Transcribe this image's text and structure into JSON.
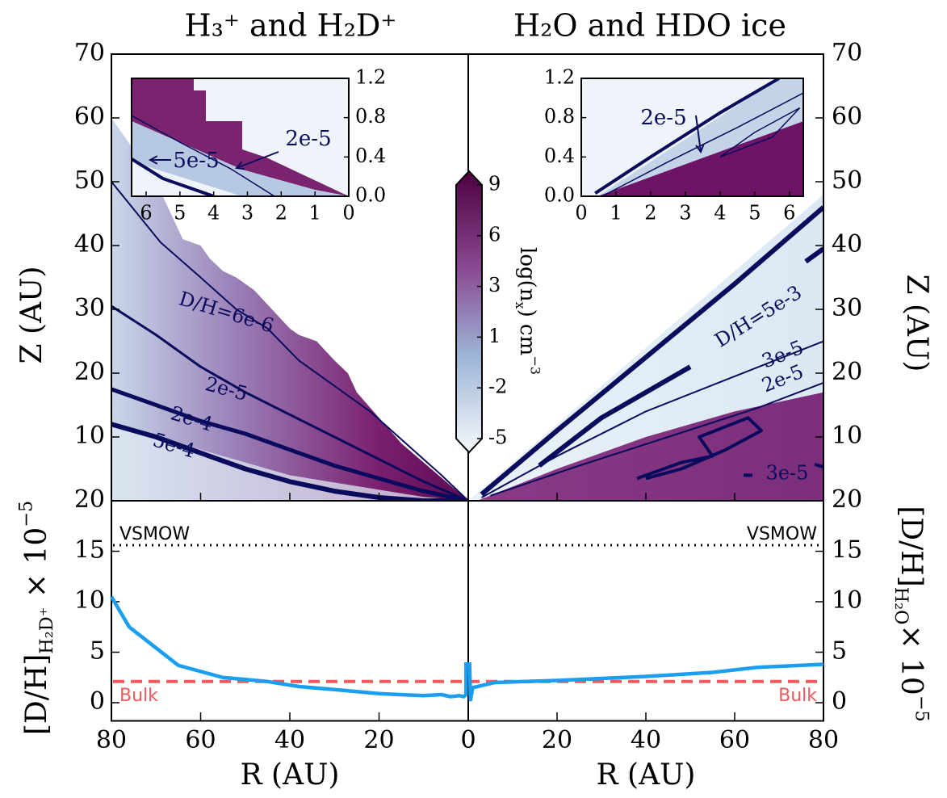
{
  "chart_data": {
    "type": "contour-profile",
    "titles": [
      "H₃⁺ and H₂D⁺",
      "H₂O and HDO ice"
    ],
    "xlabel": "R (AU)",
    "xlim": [
      0,
      80
    ],
    "xticks_left": [
      80,
      60,
      40,
      20,
      0
    ],
    "xticks_right": [
      0,
      20,
      40,
      60,
      80
    ],
    "top": {
      "ylabel": "Z (AU)",
      "ylim": [
        0,
        70
      ],
      "yticks": [
        10,
        20,
        30,
        40,
        50,
        60,
        70
      ],
      "contour_color": "#0b0b5e",
      "contours_left": [
        {
          "label": "D/H=6e-6",
          "linewidth": 2,
          "R": [
            80,
            69,
            60,
            52,
            45,
            38,
            30,
            22,
            14,
            6,
            0
          ],
          "Z": [
            50,
            40.5,
            35,
            30,
            27,
            22,
            18,
            14,
            9,
            4,
            0
          ]
        },
        {
          "label": "2e-5",
          "linewidth": 3,
          "R": [
            80,
            70,
            60,
            50,
            40,
            30,
            20,
            10,
            0
          ],
          "Z": [
            30.5,
            26,
            21,
            17,
            13.5,
            10,
            6.5,
            3,
            0
          ]
        },
        {
          "label": "2e-4",
          "linewidth": 5,
          "R": [
            80,
            70,
            60,
            50,
            40,
            30,
            20,
            10,
            0
          ],
          "Z": [
            17.5,
            15,
            12.5,
            10.5,
            8,
            5.5,
            3.5,
            1.5,
            0
          ]
        },
        {
          "label": "5e-4",
          "linewidth": 6,
          "R": [
            80,
            70,
            60,
            50,
            40,
            30,
            20,
            10,
            0
          ],
          "Z": [
            12,
            10,
            7.5,
            5,
            3,
            1.5,
            0.5,
            0,
            0
          ]
        }
      ],
      "contours_right": [
        {
          "linewidth": 6,
          "R": [
            3,
            20,
            40,
            60,
            80
          ],
          "Z": [
            1,
            11,
            22.5,
            34,
            46
          ]
        },
        {
          "label": "D/H=5e-3",
          "linewidth": 6,
          "R": [
            16,
            30,
            50,
            null,
            76,
            80
          ],
          "Z": [
            5.5,
            13,
            21,
            null,
            37.5,
            39.5
          ]
        },
        {
          "label": "3e-5",
          "linewidth": 2,
          "R": [
            3,
            20,
            40,
            60,
            80
          ],
          "Z": [
            0.5,
            7,
            14,
            19.5,
            25
          ]
        },
        {
          "label": "2e-5",
          "linewidth": 2,
          "R": [
            5,
            25,
            45,
            65,
            80
          ],
          "Z": [
            0.8,
            5.5,
            10,
            14.5,
            18.5
          ]
        },
        {
          "label": "3e-5",
          "linewidth": 4,
          "R": [
            38,
            48,
            55,
            52,
            63,
            66,
            58,
            48,
            40,
            null,
            62,
            64,
            null,
            78,
            80
          ],
          "Z": [
            3.5,
            6,
            7,
            10,
            13,
            11,
            8,
            5,
            3.5,
            null,
            4,
            4,
            null,
            5.7,
            5.3
          ]
        }
      ]
    },
    "colorbar": {
      "label": {
        "main": "log(n",
        "sub": "x",
        "tail": ") cm",
        "sup": "−3"
      },
      "ticks": [
        9,
        6,
        3,
        1,
        -2,
        -5
      ]
    },
    "insets": [
      {
        "xlim": [
          6.43,
          0
        ],
        "ylim": [
          0,
          1.2
        ],
        "xticks": [
          6,
          5,
          4,
          3,
          2,
          1,
          0
        ],
        "yticks": [
          {
            "value": 0,
            "label": "0.0"
          },
          0.4,
          0.8,
          1.2
        ],
        "contours": [
          {
            "label": "2e-5",
            "linewidth": 1.5,
            "R": [
              6.43,
              5,
              3.5,
              2.2
            ],
            "Z": [
              0.82,
              0.55,
              0.28,
              0
            ]
          },
          {
            "label": "5e-5",
            "linewidth": 4,
            "R": [
              6.43,
              5.5,
              4
            ],
            "Z": [
              0.38,
              0.18,
              0
            ]
          }
        ]
      },
      {
        "xlim": [
          0,
          6.4
        ],
        "ylim": [
          0,
          1.2
        ],
        "xticks": [
          0,
          1,
          2,
          3,
          4,
          5,
          6
        ],
        "yticks": [
          {
            "value": 0,
            "label": "0.0"
          },
          0.4,
          0.8,
          1.2
        ],
        "contours": [
          {
            "linewidth": 4,
            "R": [
              0.4,
              2,
              4,
              5.7
            ],
            "Z": [
              0.03,
              0.4,
              0.85,
              1.2
            ]
          },
          {
            "label": "2e-5",
            "linewidth": 1.5,
            "R": [
              0.6,
              2.5,
              4.5,
              6.4
            ],
            "Z": [
              0,
              0.35,
              0.7,
              1.05
            ]
          },
          {
            "linewidth": 1.5,
            "R": [
              4,
              5,
              6.3,
              5.5,
              4
            ],
            "Z": [
              0.4,
              0.65,
              0.9,
              0.6,
              0.4
            ]
          }
        ]
      }
    ],
    "bottom": {
      "ylim": [
        -1.8,
        20
      ],
      "yticks": [
        0,
        5,
        10,
        15,
        20
      ],
      "ylabel_left": {
        "main": "[D/H]",
        "sub": "H₂D⁺",
        "tail": " × 10",
        "sup": "−5"
      },
      "ylabel_right": {
        "main": "[D/H]",
        "sub": "H₂O",
        "tail": "× 10",
        "sup": "−5"
      },
      "series": [
        {
          "side": "left",
          "color": "#1a9ff0",
          "R": [
            80,
            76,
            65,
            55,
            45,
            38,
            30,
            20,
            10,
            6,
            4,
            2,
            1,
            0.5,
            0.5
          ],
          "values": [
            10.5,
            7.5,
            3.7,
            2.5,
            2.1,
            1.6,
            1.3,
            0.9,
            0.7,
            0.8,
            0.6,
            0.7,
            0.6,
            0.8,
            4
          ]
        },
        {
          "side": "right",
          "color": "#1a9ff0",
          "R": [
            0.3,
            0.5,
            1,
            3,
            6,
            20,
            30,
            40,
            55,
            65,
            80
          ],
          "values": [
            4,
            0.3,
            1.5,
            1.7,
            2,
            2.2,
            2.4,
            2.6,
            3,
            3.5,
            3.8
          ]
        }
      ],
      "vsmow": {
        "label": "VSMOW",
        "value": 15.6,
        "color": "#000000"
      },
      "bulk": {
        "label": "Bulk",
        "value": 2.1,
        "color": "#f05a5a"
      }
    }
  }
}
